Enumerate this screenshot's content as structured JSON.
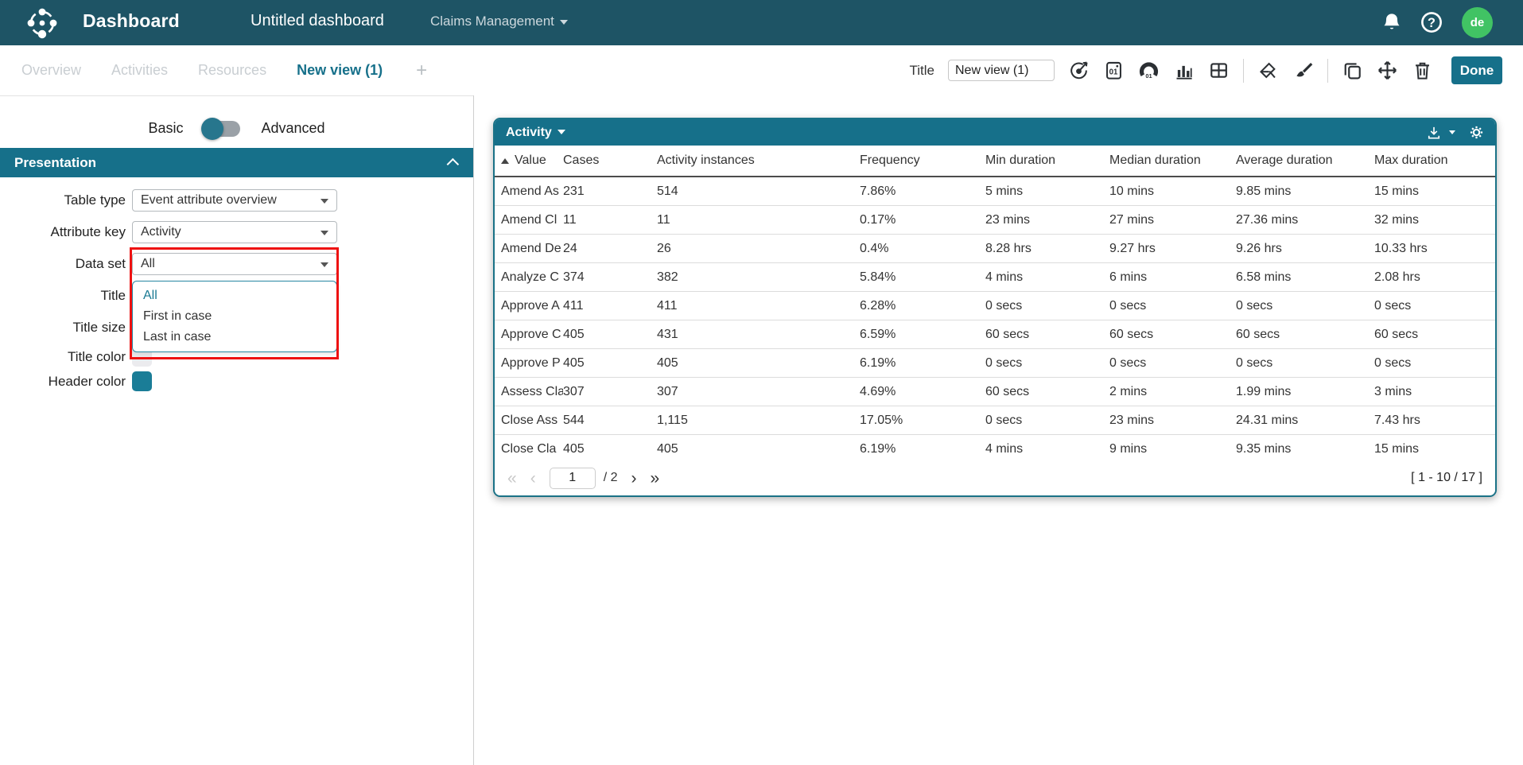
{
  "navbar": {
    "app_title": "Dashboard",
    "dashboard_name": "Untitled dashboard",
    "project_selector": "Claims Management",
    "avatar_initials": "de"
  },
  "tabs": {
    "items": [
      {
        "label": "Overview",
        "active": false
      },
      {
        "label": "Activities",
        "active": false
      },
      {
        "label": "Resources",
        "active": false
      },
      {
        "label": "New view (1)",
        "active": true
      }
    ],
    "add_button": "+"
  },
  "toolbar": {
    "title_label": "Title",
    "title_value": "New view (1)",
    "done_label": "Done",
    "icon_names": [
      "target-chart-icon",
      "numeric-tile-icon",
      "gauge-chart-icon",
      "bar-chart-icon",
      "table-widget-icon",
      "fill-style-icon",
      "clear-format-icon",
      "duplicate-icon",
      "move-icon",
      "delete-icon"
    ]
  },
  "sidebar": {
    "mode_toggle": {
      "left_label": "Basic",
      "right_label": "Advanced",
      "selected": "Basic"
    },
    "section_title": "Presentation",
    "fields": {
      "table_type": {
        "label": "Table type",
        "value": "Event attribute overview"
      },
      "attribute_key": {
        "label": "Attribute key",
        "value": "Activity"
      },
      "data_set": {
        "label": "Data set",
        "value": "All"
      },
      "title": {
        "label": "Title"
      },
      "title_size": {
        "label": "Title size"
      },
      "title_color": {
        "label": "Title color",
        "swatch_color": "#ebebee"
      },
      "header_color": {
        "label": "Header color",
        "swatch_color": "#1a7d97"
      }
    },
    "data_set_dropdown": {
      "options": [
        "All",
        "First in case",
        "Last in case"
      ],
      "selected": "All",
      "highlight_color": "#ee1212"
    }
  },
  "widget": {
    "header_title": "Activity",
    "sort": {
      "column": "Value",
      "direction": "asc"
    },
    "columns": [
      "Value",
      "Cases",
      "Activity instances",
      "Frequency",
      "Min duration",
      "Median duration",
      "Average duration",
      "Max duration"
    ],
    "rows": [
      [
        "Amend As",
        "231",
        "514",
        "7.86%",
        "5 mins",
        "10 mins",
        "9.85 mins",
        "15 mins"
      ],
      [
        "Amend Cl",
        "11",
        "11",
        "0.17%",
        "23 mins",
        "27 mins",
        "27.36 mins",
        "32 mins"
      ],
      [
        "Amend De",
        "24",
        "26",
        "0.4%",
        "8.28 hrs",
        "9.27 hrs",
        "9.26 hrs",
        "10.33 hrs"
      ],
      [
        "Analyze C",
        "374",
        "382",
        "5.84%",
        "4 mins",
        "6 mins",
        "6.58 mins",
        "2.08 hrs"
      ],
      [
        "Approve A",
        "411",
        "411",
        "6.28%",
        "0 secs",
        "0 secs",
        "0 secs",
        "0 secs"
      ],
      [
        "Approve C",
        "405",
        "431",
        "6.59%",
        "60 secs",
        "60 secs",
        "60 secs",
        "60 secs"
      ],
      [
        "Approve P",
        "405",
        "405",
        "6.19%",
        "0 secs",
        "0 secs",
        "0 secs",
        "0 secs"
      ],
      [
        "Assess Cla",
        "307",
        "307",
        "4.69%",
        "60 secs",
        "2 mins",
        "1.99 mins",
        "3 mins"
      ],
      [
        "Close Ass",
        "544",
        "1,115",
        "17.05%",
        "0 secs",
        "23 mins",
        "24.31 mins",
        "7.43 hrs"
      ],
      [
        "Close Cla",
        "405",
        "405",
        "6.19%",
        "4 mins",
        "9 mins",
        "9.35 mins",
        "15 mins"
      ]
    ],
    "pagination": {
      "page": "1",
      "page_count_label": "/ 2",
      "first_label": "«",
      "prev_label": "‹",
      "next_label": "›",
      "last_label": "»",
      "range_label": "[ 1 - 10 / 17 ]"
    }
  },
  "colors": {
    "navbar_bg": "#1e5465",
    "accent_teal": "#16708a",
    "avatar_green": "#41c364",
    "highlight_red": "#ee1212"
  }
}
